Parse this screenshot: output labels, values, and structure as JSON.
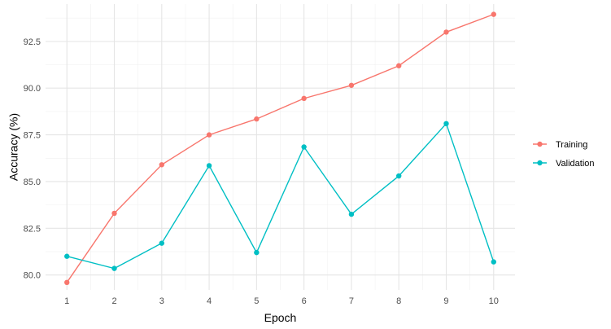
{
  "chart_data": {
    "type": "line",
    "title": "",
    "xlabel": "Epoch",
    "ylabel": "Accuracy (%)",
    "x": [
      1,
      2,
      3,
      4,
      5,
      6,
      7,
      8,
      9,
      10
    ],
    "xticks": [
      "1",
      "2",
      "3",
      "4",
      "5",
      "6",
      "7",
      "8",
      "9",
      "10"
    ],
    "yticks": [
      80.0,
      82.5,
      85.0,
      87.5,
      90.0,
      92.5
    ],
    "ytick_labels": [
      "80.0",
      "82.5",
      "85.0",
      "87.5",
      "90.0",
      "92.5"
    ],
    "xlim": [
      0.55,
      10.45
    ],
    "ylim": [
      79.2,
      94.5
    ],
    "grid": true,
    "legend_position": "right",
    "series": [
      {
        "name": "Training",
        "color": "#F8766D",
        "values": [
          79.6,
          83.3,
          85.9,
          87.5,
          88.35,
          89.45,
          90.15,
          91.2,
          93.0,
          93.95
        ]
      },
      {
        "name": "Validation",
        "color": "#00BFC4",
        "values": [
          81.0,
          80.35,
          81.7,
          85.85,
          81.2,
          86.85,
          83.25,
          85.3,
          88.1,
          80.7
        ]
      }
    ]
  }
}
